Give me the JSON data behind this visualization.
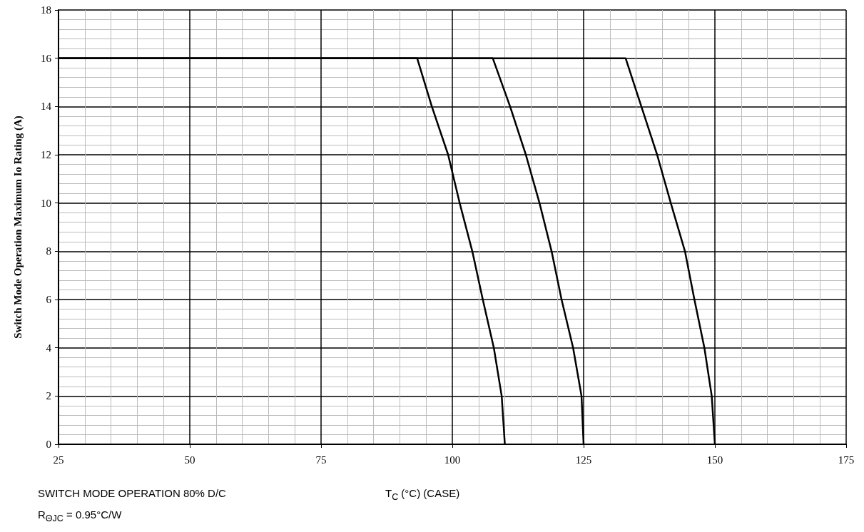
{
  "chart_data": {
    "type": "line",
    "xlabel": "T$_{C}$ (°C)  (CASE)",
    "ylabel": "Switch Mode Operation Maximum Io Rating (A)",
    "annotations": [
      "SWITCH MODE OPERATION  80% D/C",
      "R$_{ΘJC}$ = 0.95°C/W"
    ],
    "series": [
      {
        "color": "#000000",
        "x": [
          25,
          93.3,
          96.1,
          99.2,
          101.4,
          103.8,
          105.8,
          107.9,
          109.4,
          110
        ],
        "values": [
          16,
          16,
          14,
          12,
          10,
          8,
          6,
          4,
          2,
          0
        ]
      },
      {
        "color": "#000000",
        "x": [
          25,
          107.7,
          111.0,
          114.0,
          116.6,
          118.9,
          120.8,
          123.0,
          124.6,
          125
        ],
        "values": [
          16,
          16,
          14,
          12,
          10,
          8,
          6,
          4,
          2,
          0
        ]
      },
      {
        "color": "#000000",
        "x": [
          25,
          133.0,
          136.0,
          139.0,
          141.6,
          144.3,
          146.1,
          148.0,
          149.4,
          150
        ],
        "values": [
          16,
          16,
          14,
          12,
          10,
          8,
          6,
          4,
          2,
          0
        ]
      }
    ],
    "xlim": [
      25,
      175
    ],
    "xticks": [
      25,
      50,
      75,
      100,
      125,
      150,
      175
    ],
    "ylim": [
      0,
      18
    ],
    "yticks": [
      0,
      2,
      4,
      6,
      8,
      10,
      12,
      14,
      16,
      18
    ],
    "grid": true
  }
}
